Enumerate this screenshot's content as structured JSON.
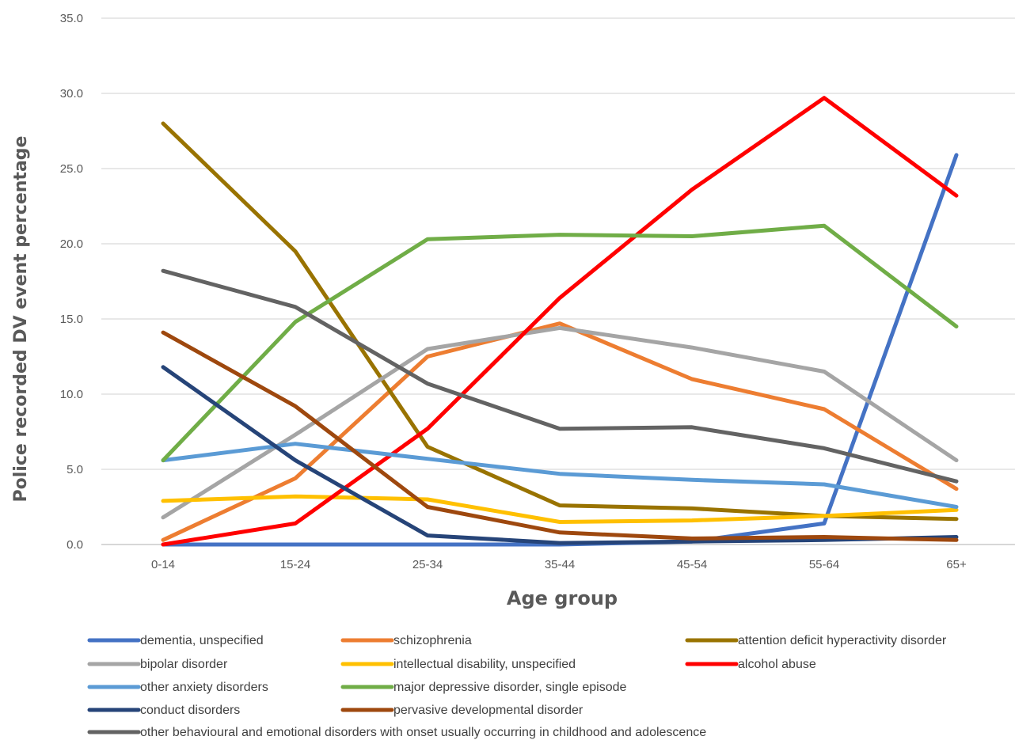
{
  "chart_data": {
    "type": "line",
    "title": "",
    "xlabel": "Age group",
    "ylabel": "Police recorded DV event percentage",
    "categories": [
      "0-14",
      "15-24",
      "25-34",
      "35-44",
      "45-54",
      "55-64",
      "65+"
    ],
    "ylim": [
      0,
      35
    ],
    "yticks": [
      "0.0",
      "5.0",
      "10.0",
      "15.0",
      "20.0",
      "25.0",
      "30.0",
      "35.0"
    ],
    "grid": true,
    "legend_position": "bottom",
    "series": [
      {
        "name": "dementia, unspecified",
        "color": "#4472C4",
        "values": [
          0.0,
          0.0,
          0.0,
          0.0,
          0.2,
          1.4,
          25.9
        ]
      },
      {
        "name": "schizophrenia",
        "color": "#ED7D31",
        "values": [
          0.3,
          4.4,
          12.5,
          14.7,
          11.0,
          9.0,
          3.7
        ]
      },
      {
        "name": "attention deficit hyperactivity disorder",
        "color": "#997300",
        "values": [
          28.0,
          19.5,
          6.5,
          2.6,
          2.4,
          1.9,
          1.7
        ]
      },
      {
        "name": "bipolar disorder",
        "color": "#A5A5A5",
        "values": [
          1.8,
          7.3,
          13.0,
          14.4,
          13.1,
          11.5,
          5.6
        ]
      },
      {
        "name": "intellectual disability, unspecified",
        "color": "#FFC000",
        "values": [
          2.9,
          3.2,
          3.0,
          1.5,
          1.6,
          1.9,
          2.3
        ]
      },
      {
        "name": "alcohol abuse",
        "color": "#FF0000",
        "values": [
          0.0,
          1.4,
          7.7,
          16.4,
          23.6,
          29.7,
          23.2
        ]
      },
      {
        "name": "other anxiety disorders",
        "color": "#5B9BD5",
        "values": [
          5.6,
          6.7,
          5.7,
          4.7,
          4.3,
          4.0,
          2.5
        ]
      },
      {
        "name": "major depressive disorder, single episode",
        "color": "#70AD47",
        "values": [
          5.6,
          14.8,
          20.3,
          20.6,
          20.5,
          21.2,
          14.5
        ]
      },
      {
        "name": "conduct disorders",
        "color": "#264478",
        "values": [
          11.8,
          5.6,
          0.6,
          0.1,
          0.2,
          0.3,
          0.5
        ]
      },
      {
        "name": "pervasive developmental disorder",
        "color": "#9E480E",
        "values": [
          14.1,
          9.2,
          2.5,
          0.8,
          0.4,
          0.5,
          0.3
        ]
      },
      {
        "name": "other behavioural and emotional disorders with onset usually occurring in childhood and adolescence",
        "color": "#636363",
        "values": [
          18.2,
          15.8,
          10.7,
          7.7,
          7.8,
          6.4,
          4.2
        ]
      }
    ]
  }
}
